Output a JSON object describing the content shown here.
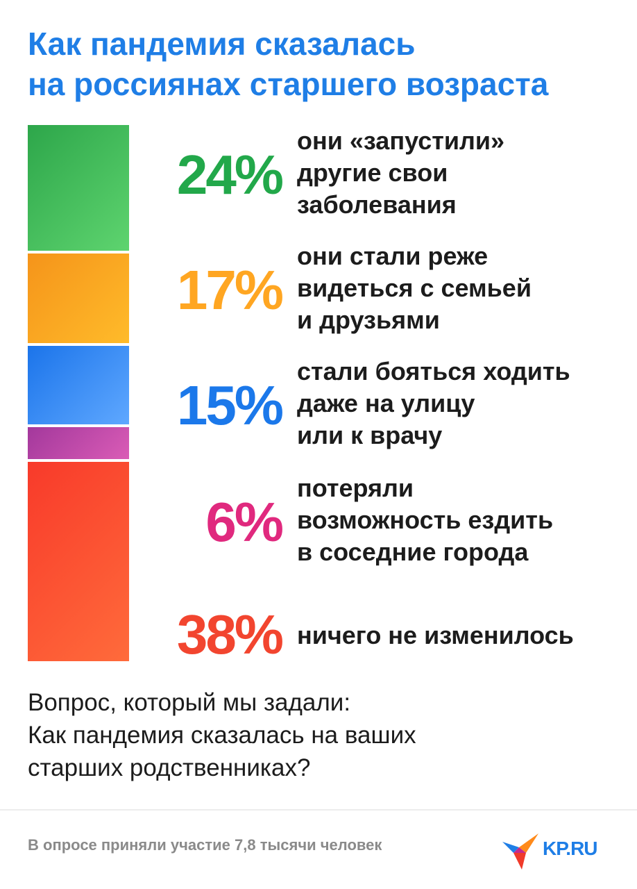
{
  "title_lines": [
    "Как пандемия сказалась",
    "на россиянах старшего возраста"
  ],
  "chart_data": {
    "type": "bar",
    "stacked": true,
    "orientation": "vertical",
    "unit": "%",
    "categories": [
      "они «запустили» другие свои заболевания",
      "они стали реже видеться с семьей и друзьями",
      "стали бояться ходить даже на улицу или к врачу",
      "потеряли возможность ездить в соседние города",
      "ничего не изменилось"
    ],
    "values": [
      24,
      17,
      15,
      6,
      38
    ],
    "labels": [
      "24%",
      "17%",
      "15%",
      "6%",
      "38%"
    ],
    "label_lines": [
      [
        "они «запустили»",
        "другие свои",
        "заболевания"
      ],
      [
        "они стали реже",
        "видеться с семьей",
        "и друзьями"
      ],
      [
        "стали бояться ходить",
        "даже на улицу",
        "или к врачу"
      ],
      [
        "потеряли",
        "возможность ездить",
        "в соседние города"
      ],
      [
        "ничего не изменилось"
      ]
    ],
    "colors": [
      [
        "#2da64a",
        "#5ed46f"
      ],
      [
        "#f5941a",
        "#ffbb2a"
      ],
      [
        "#1b74ea",
        "#5fa8ff"
      ],
      [
        "#a3389c",
        "#da5cb6"
      ],
      [
        "#f83a2a",
        "#ff6b3b"
      ]
    ],
    "pct_colors": [
      "#22a84a",
      "#ffa622",
      "#1b78ea",
      "#e0297e",
      "#f2452f"
    ]
  },
  "question_lines": [
    "Вопрос, который мы задали:",
    "Как пандемия сказалась на ваших",
    "старших родственниках?"
  ],
  "footnote": "В опросе приняли участие 7,8 тысячи человек",
  "logo": {
    "text": "KP.RU",
    "icon": "kp-bird-logo-icon"
  }
}
